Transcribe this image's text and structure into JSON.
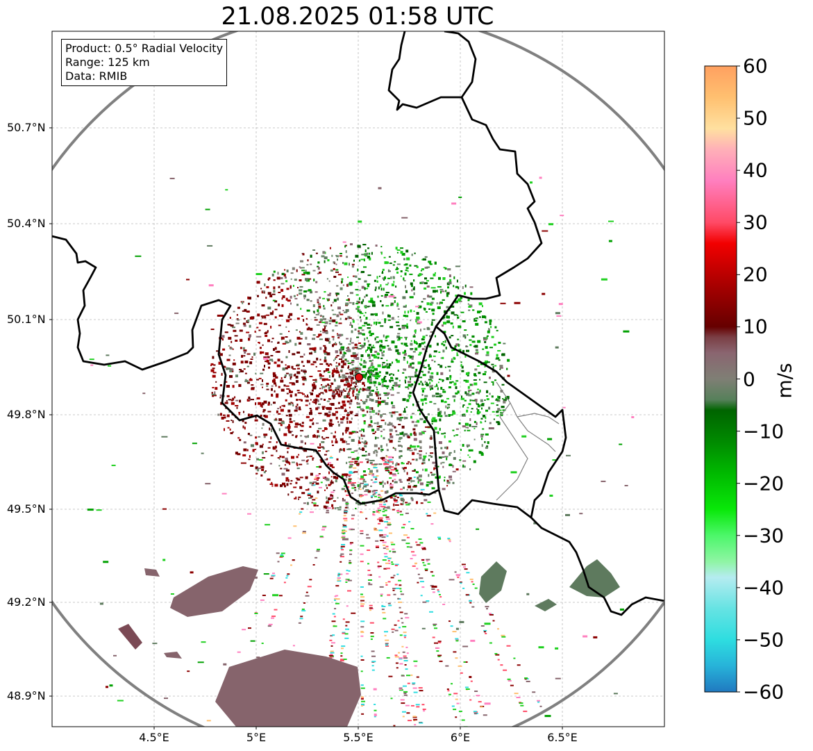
{
  "title": "21.08.2025 01:58 UTC",
  "info": {
    "product": "Product: 0.5° Radial Velocity",
    "range": "Range: 125 km",
    "data": "Data: RMIB"
  },
  "lat_ticks": [
    "50.7°N",
    "50.4°N",
    "50.1°N",
    "49.8°N",
    "49.5°N",
    "49.2°N",
    "48.9°N"
  ],
  "lon_ticks": [
    "4.5°E",
    "5°E",
    "5.5°E",
    "6°E",
    "6.5°E"
  ],
  "colorbar": {
    "unit": "m/s",
    "min": -60,
    "max": 60,
    "ticks": [
      "60",
      "50",
      "40",
      "30",
      "20",
      "10",
      "0",
      "−10",
      "−20",
      "−30",
      "−40",
      "−50",
      "−60"
    ],
    "stops": [
      {
        "v": -60,
        "c": "#2079c0"
      },
      {
        "v": -55,
        "c": "#27b3d9"
      },
      {
        "v": -50,
        "c": "#2edde0"
      },
      {
        "v": -44,
        "c": "#66e3e3"
      },
      {
        "v": -38,
        "c": "#b5ecf0"
      },
      {
        "v": -35,
        "c": "#8ff5a4"
      },
      {
        "v": -30,
        "c": "#4cf76a"
      },
      {
        "v": -25,
        "c": "#09e809"
      },
      {
        "v": -18,
        "c": "#00b800"
      },
      {
        "v": -12,
        "c": "#008a00"
      },
      {
        "v": -6,
        "c": "#006400"
      },
      {
        "v": -4,
        "c": "#56805a"
      },
      {
        "v": 0,
        "c": "#7f7f75"
      },
      {
        "v": 5,
        "c": "#8a6570"
      },
      {
        "v": 8,
        "c": "#7b3f45"
      },
      {
        "v": 10,
        "c": "#660000"
      },
      {
        "v": 18,
        "c": "#a80000"
      },
      {
        "v": 26,
        "c": "#f20000"
      },
      {
        "v": 30,
        "c": "#ff4a66"
      },
      {
        "v": 38,
        "c": "#ff7fbf"
      },
      {
        "v": 44,
        "c": "#ffb0b8"
      },
      {
        "v": 48,
        "c": "#ffe0a0"
      },
      {
        "v": 54,
        "c": "#ffc070"
      },
      {
        "v": 60,
        "c": "#ffa060"
      }
    ]
  },
  "radar_site": {
    "lon": 5.505,
    "lat": 49.914,
    "color": "#e01010"
  },
  "colors": {
    "receding_dark_red": "#7a0000",
    "approaching_green": "#008c00",
    "near_zero_grey_green": "#5e7a5e",
    "range_ring": "#808080"
  }
}
